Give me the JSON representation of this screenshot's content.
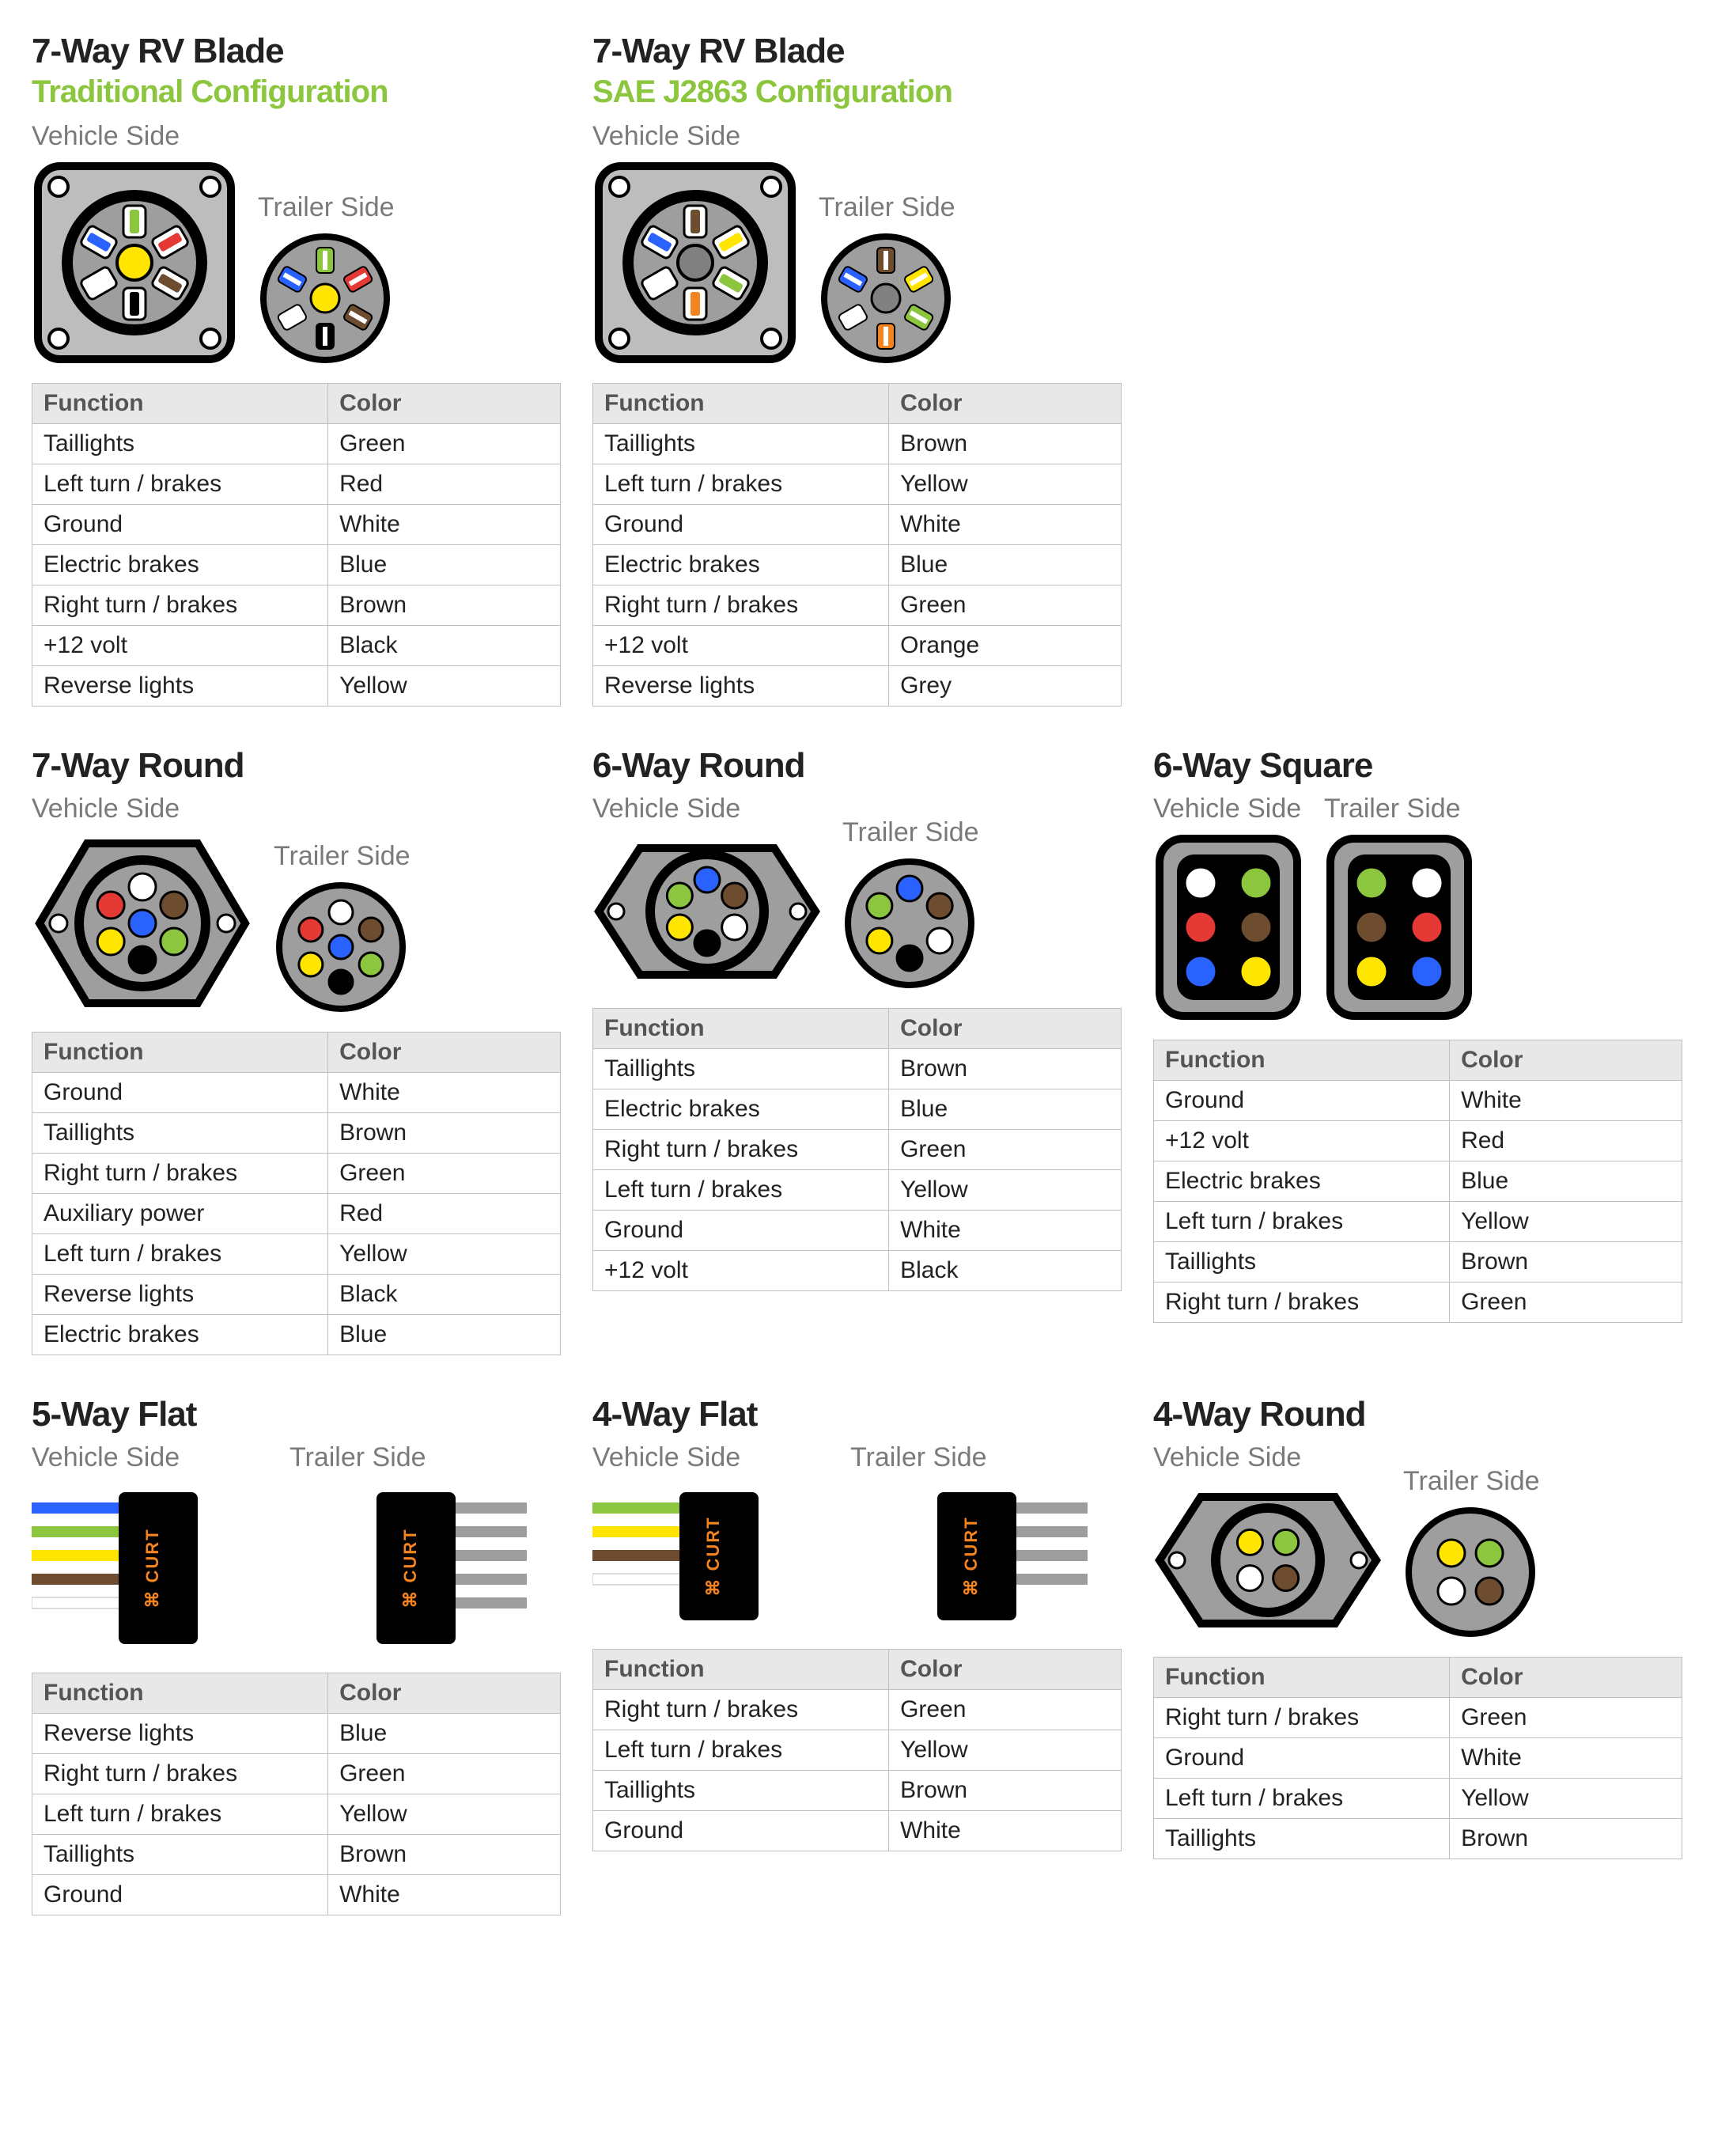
{
  "colors": {
    "green": "#8cc63e",
    "grey_bg": "#9e9e9e",
    "grey_light": "#bdbdbd",
    "black": "#000000",
    "white": "#ffffff",
    "red": "#e53935",
    "blue": "#2962ff",
    "brown": "#6d4c2f",
    "yellow": "#ffe500",
    "orange": "#f5831f",
    "grey_pin": "#808080",
    "curt_orange": "#f5831f"
  },
  "labels": {
    "vehicle": "Vehicle Side",
    "trailer": "Trailer Side",
    "function": "Function",
    "color": "Color"
  },
  "panels": [
    {
      "id": "rv-blade-trad",
      "title": "7-Way RV Blade",
      "subtitle": "Traditional Configuration",
      "diagram": "rv_blade",
      "center_color": "#ffe500",
      "rows": [
        [
          "Taillights",
          "Green"
        ],
        [
          "Left turn / brakes",
          "Red"
        ],
        [
          "Ground",
          "White"
        ],
        [
          "Electric brakes",
          "Blue"
        ],
        [
          "Right turn / brakes",
          "Brown"
        ],
        [
          "+12 volt",
          "Black"
        ],
        [
          "Reverse lights",
          "Yellow"
        ]
      ],
      "vehicle_pins": [
        "#8cc63e",
        "#e53935",
        "#6d4c2f",
        "#000000",
        "#ffffff",
        "#2962ff"
      ],
      "trailer_pins": [
        "#8cc63e",
        "#e53935",
        "#6d4c2f",
        "#000000",
        "#ffffff",
        "#2962ff"
      ]
    },
    {
      "id": "rv-blade-sae",
      "title": "7-Way RV Blade",
      "subtitle": "SAE J2863 Configuration",
      "diagram": "rv_blade",
      "center_color": "#808080",
      "rows": [
        [
          "Taillights",
          "Brown"
        ],
        [
          "Left turn / brakes",
          "Yellow"
        ],
        [
          "Ground",
          "White"
        ],
        [
          "Electric brakes",
          "Blue"
        ],
        [
          "Right turn / brakes",
          "Green"
        ],
        [
          "+12 volt",
          "Orange"
        ],
        [
          "Reverse lights",
          "Grey"
        ]
      ],
      "vehicle_pins": [
        "#6d4c2f",
        "#ffe500",
        "#8cc63e",
        "#f5831f",
        "#ffffff",
        "#2962ff"
      ],
      "trailer_pins": [
        "#6d4c2f",
        "#ffe500",
        "#8cc63e",
        "#f5831f",
        "#ffffff",
        "#2962ff"
      ]
    },
    {
      "id": "spacer-1",
      "spacer": true
    },
    {
      "id": "7way-round",
      "title": "7-Way Round",
      "diagram": "round7",
      "rows": [
        [
          "Ground",
          "White"
        ],
        [
          "Taillights",
          "Brown"
        ],
        [
          "Right turn / brakes",
          "Green"
        ],
        [
          "Auxiliary power",
          "Red"
        ],
        [
          "Left turn / brakes",
          "Yellow"
        ],
        [
          "Reverse lights",
          "Black"
        ],
        [
          "Electric brakes",
          "Blue"
        ]
      ],
      "vehicle_pins": [
        "#ffffff",
        "#6d4c2f",
        "#8cc63e",
        "#000000",
        "#ffe500",
        "#e53935",
        "#2962ff"
      ],
      "trailer_pins": [
        "#ffffff",
        "#6d4c2f",
        "#8cc63e",
        "#000000",
        "#ffe500",
        "#e53935",
        "#2962ff"
      ]
    },
    {
      "id": "6way-round",
      "title": "6-Way Round",
      "diagram": "round6",
      "rows": [
        [
          "Taillights",
          "Brown"
        ],
        [
          "Electric brakes",
          "Blue"
        ],
        [
          "Right turn / brakes",
          "Green"
        ],
        [
          "Left turn / brakes",
          "Yellow"
        ],
        [
          "Ground",
          "White"
        ],
        [
          "+12 volt",
          "Black"
        ]
      ],
      "vehicle_pins": [
        "#2962ff",
        "#6d4c2f",
        "#ffffff",
        "#000000",
        "#ffe500",
        "#8cc63e"
      ],
      "trailer_pins": [
        "#2962ff",
        "#6d4c2f",
        "#ffffff",
        "#000000",
        "#ffe500",
        "#8cc63e"
      ]
    },
    {
      "id": "6way-square",
      "title": "6-Way Square",
      "diagram": "square6",
      "rows": [
        [
          "Ground",
          "White"
        ],
        [
          "+12 volt",
          "Red"
        ],
        [
          "Electric brakes",
          "Blue"
        ],
        [
          "Left turn / brakes",
          "Yellow"
        ],
        [
          "Taillights",
          "Brown"
        ],
        [
          "Right turn / brakes",
          "Green"
        ]
      ],
      "vehicle_pins": [
        "#ffffff",
        "#8cc63e",
        "#e53935",
        "#6d4c2f",
        "#2962ff",
        "#ffe500"
      ],
      "trailer_pins": [
        "#ffffff",
        "#8cc63e",
        "#e53935",
        "#6d4c2f",
        "#2962ff",
        "#ffe500"
      ]
    },
    {
      "id": "5way-flat",
      "title": "5-Way Flat",
      "diagram": "flat",
      "wire_count": 5,
      "rows": [
        [
          "Reverse lights",
          "Blue"
        ],
        [
          "Right turn / brakes",
          "Green"
        ],
        [
          "Left turn / brakes",
          "Yellow"
        ],
        [
          "Taillights",
          "Brown"
        ],
        [
          "Ground",
          "White"
        ]
      ],
      "wires": [
        "#2962ff",
        "#8cc63e",
        "#ffe500",
        "#6d4c2f",
        "#ffffff"
      ]
    },
    {
      "id": "4way-flat",
      "title": "4-Way Flat",
      "diagram": "flat",
      "wire_count": 4,
      "rows": [
        [
          "Right turn / brakes",
          "Green"
        ],
        [
          "Left turn / brakes",
          "Yellow"
        ],
        [
          "Taillights",
          "Brown"
        ],
        [
          "Ground",
          "White"
        ]
      ],
      "wires": [
        "#8cc63e",
        "#ffe500",
        "#6d4c2f",
        "#ffffff"
      ]
    },
    {
      "id": "4way-round",
      "title": "4-Way Round",
      "diagram": "round4",
      "rows": [
        [
          "Right turn / brakes",
          "Green"
        ],
        [
          "Ground",
          "White"
        ],
        [
          "Left turn / brakes",
          "Yellow"
        ],
        [
          "Taillights",
          "Brown"
        ]
      ],
      "vehicle_pins": [
        "#8cc63e",
        "#6d4c2f",
        "#ffffff",
        "#ffe500"
      ],
      "trailer_pins": [
        "#8cc63e",
        "#6d4c2f",
        "#ffffff",
        "#ffe500"
      ]
    }
  ]
}
